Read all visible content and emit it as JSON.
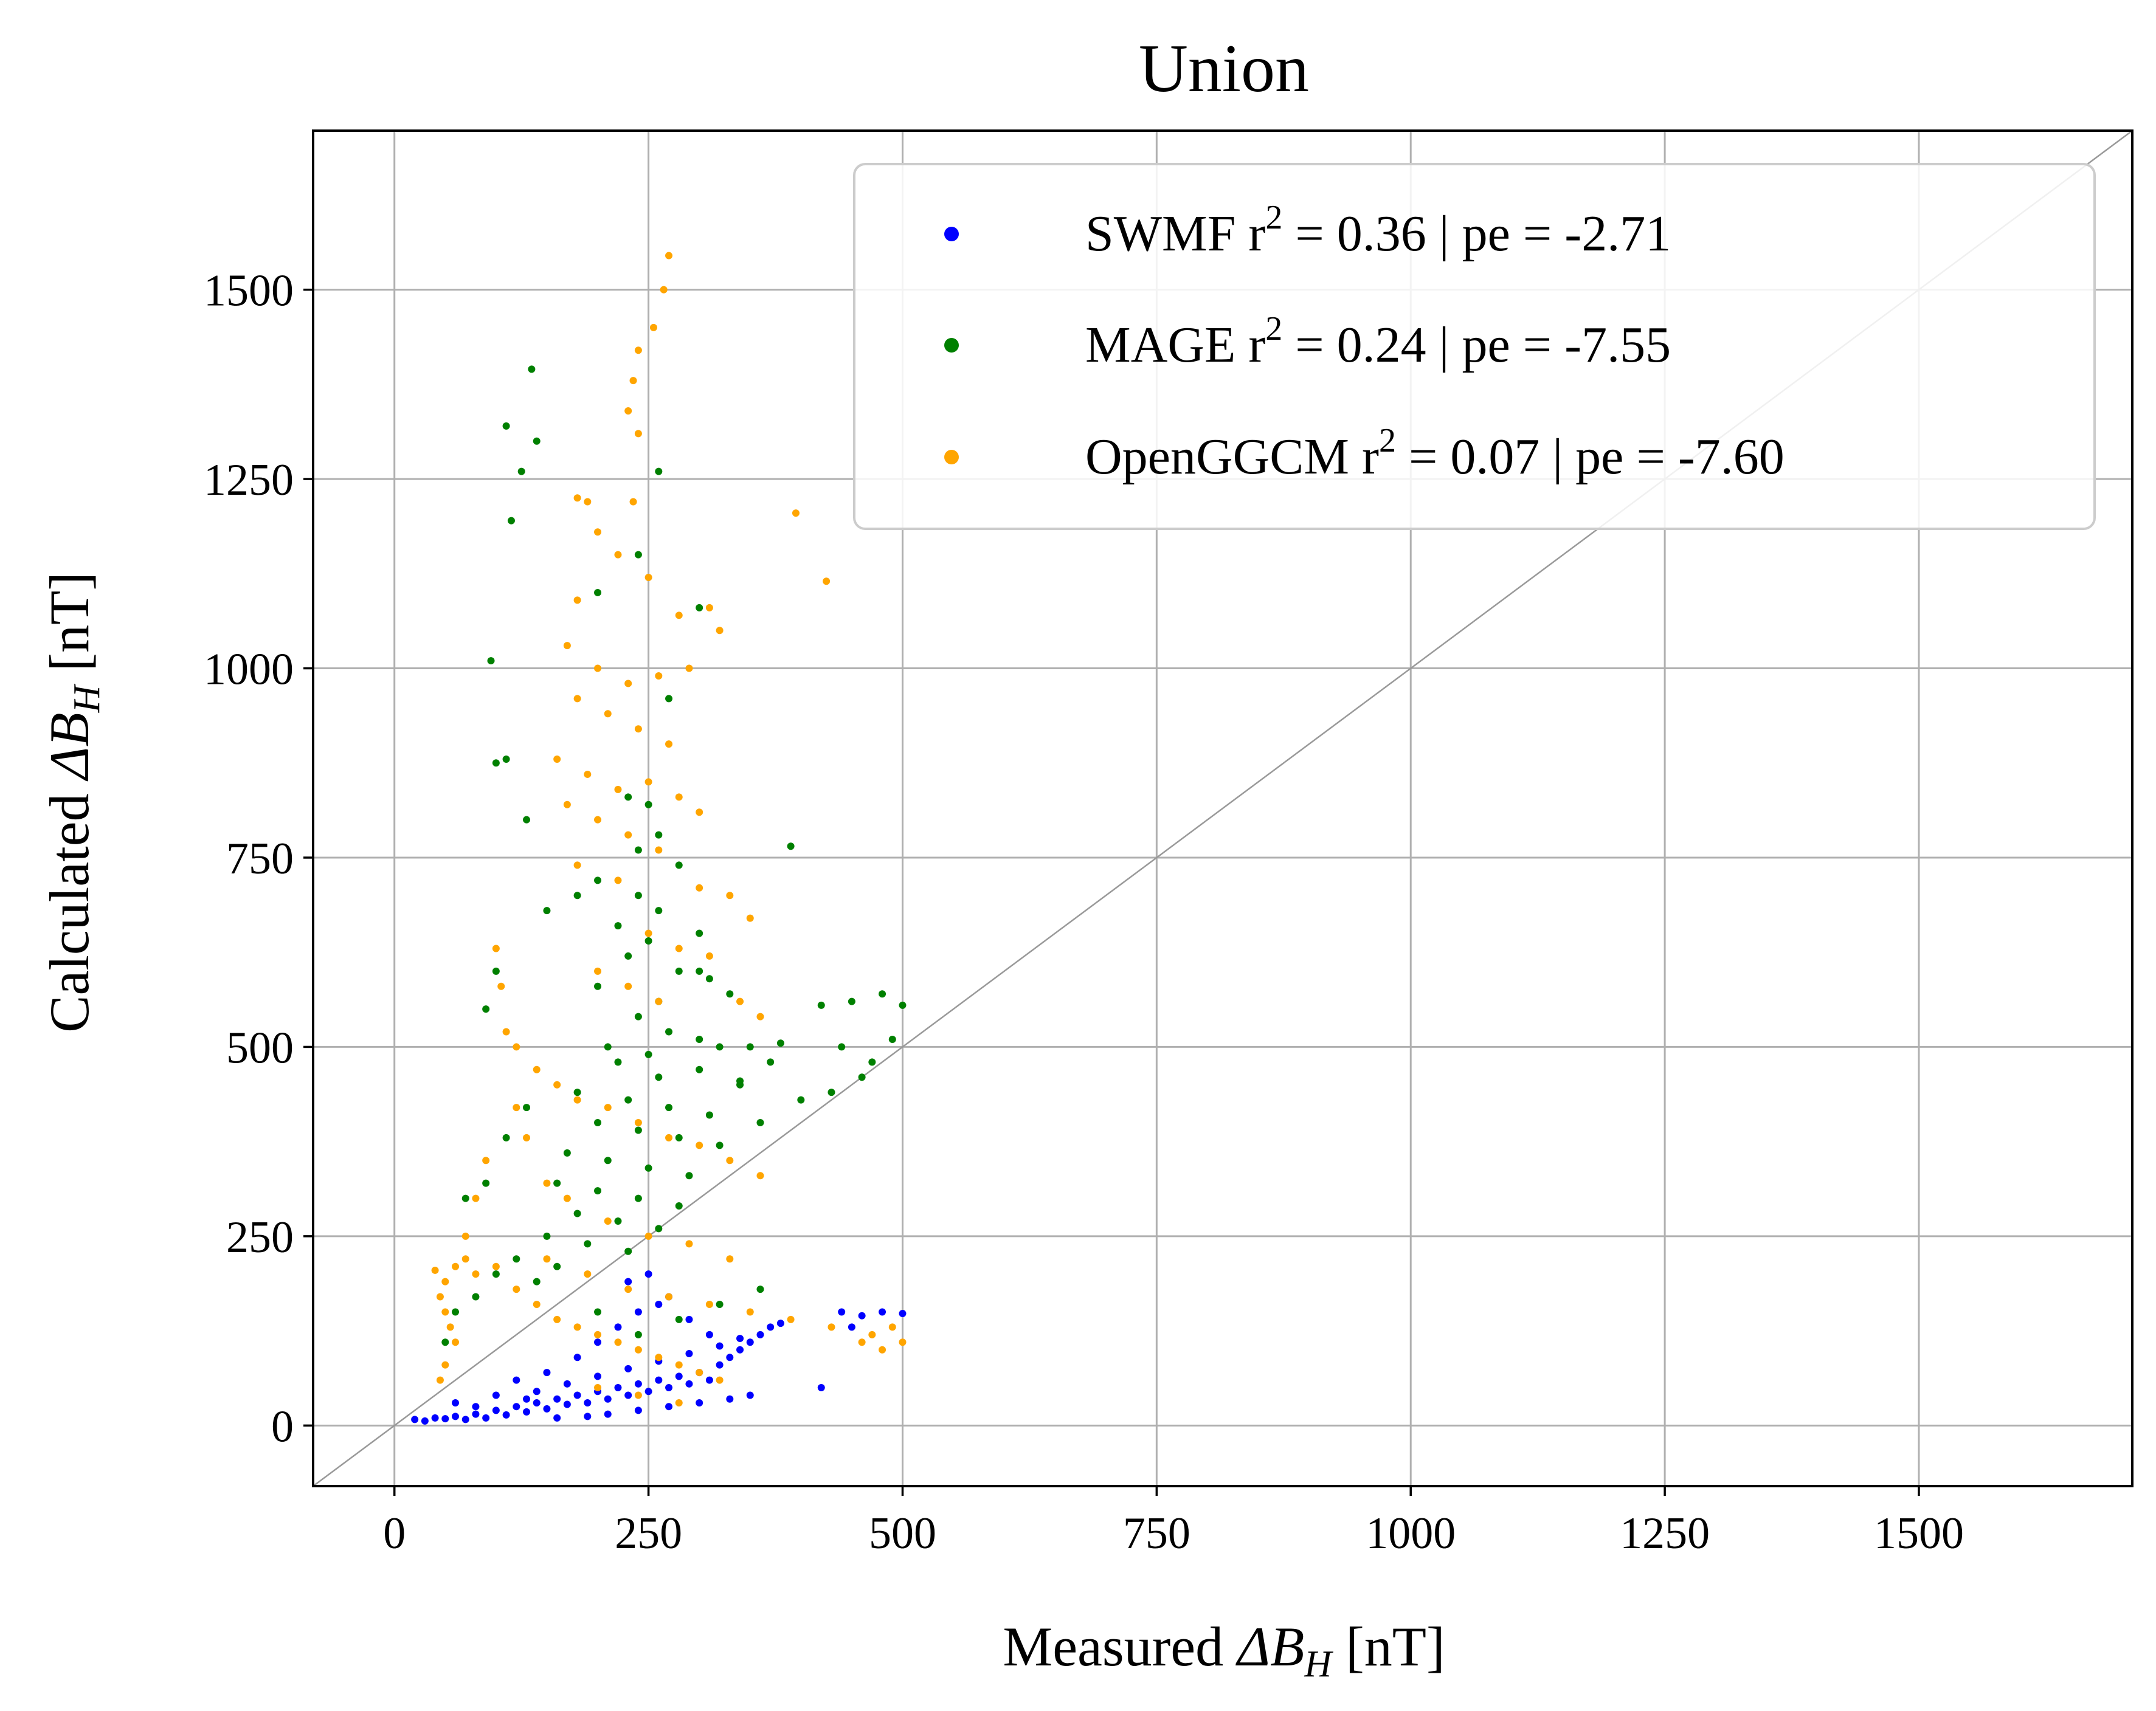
{
  "chart_data": {
    "type": "scatter",
    "title": "Union",
    "xlabel_prefix": "Measured ",
    "xlabel_symbol": "ΔB",
    "xlabel_sub": "H",
    "xlabel_suffix": " [nT]",
    "ylabel_prefix": "Calculated ",
    "ylabel_symbol": "ΔB",
    "ylabel_sub": "H",
    "ylabel_suffix": " [nT]",
    "xlim": [
      -80,
      1710
    ],
    "ylim": [
      -80,
      1710
    ],
    "xticks": [
      0,
      250,
      500,
      750,
      1000,
      1250,
      1500
    ],
    "yticks": [
      0,
      250,
      500,
      750,
      1000,
      1250,
      1500
    ],
    "grid": true,
    "reference_line": "y = x",
    "legend_position": "top-right",
    "series": [
      {
        "name": "SWMF",
        "legend_pre": "SWMF r",
        "legend_sup": "2",
        "legend_post": " = 0.36 | pe = -2.71",
        "color": "#0000ff",
        "points": [
          [
            20,
            8
          ],
          [
            30,
            6
          ],
          [
            40,
            10
          ],
          [
            50,
            9
          ],
          [
            60,
            12
          ],
          [
            70,
            8
          ],
          [
            80,
            15
          ],
          [
            90,
            10
          ],
          [
            100,
            20
          ],
          [
            110,
            14
          ],
          [
            120,
            25
          ],
          [
            130,
            18
          ],
          [
            140,
            30
          ],
          [
            150,
            22
          ],
          [
            160,
            35
          ],
          [
            170,
            28
          ],
          [
            180,
            40
          ],
          [
            190,
            30
          ],
          [
            200,
            45
          ],
          [
            210,
            35
          ],
          [
            220,
            50
          ],
          [
            230,
            40
          ],
          [
            240,
            55
          ],
          [
            250,
            45
          ],
          [
            260,
            60
          ],
          [
            270,
            50
          ],
          [
            280,
            65
          ],
          [
            290,
            55
          ],
          [
            300,
            70
          ],
          [
            310,
            60
          ],
          [
            320,
            80
          ],
          [
            330,
            90
          ],
          [
            340,
            100
          ],
          [
            350,
            110
          ],
          [
            360,
            120
          ],
          [
            370,
            130
          ],
          [
            380,
            135
          ],
          [
            120,
            60
          ],
          [
            150,
            70
          ],
          [
            180,
            90
          ],
          [
            200,
            110
          ],
          [
            220,
            130
          ],
          [
            240,
            150
          ],
          [
            260,
            160
          ],
          [
            230,
            190
          ],
          [
            250,
            200
          ],
          [
            270,
            170
          ],
          [
            290,
            140
          ],
          [
            310,
            120
          ],
          [
            160,
            10
          ],
          [
            190,
            12
          ],
          [
            210,
            15
          ],
          [
            240,
            20
          ],
          [
            270,
            25
          ],
          [
            300,
            30
          ],
          [
            330,
            35
          ],
          [
            350,
            40
          ],
          [
            140,
            45
          ],
          [
            170,
            55
          ],
          [
            200,
            65
          ],
          [
            230,
            75
          ],
          [
            260,
            85
          ],
          [
            290,
            95
          ],
          [
            320,
            105
          ],
          [
            340,
            115
          ],
          [
            420,
            50
          ],
          [
            440,
            150
          ],
          [
            460,
            145
          ],
          [
            480,
            150
          ],
          [
            500,
            148
          ],
          [
            450,
            130
          ],
          [
            100,
            40
          ],
          [
            130,
            35
          ],
          [
            60,
            30
          ],
          [
            80,
            25
          ]
        ]
      },
      {
        "name": "MAGE",
        "legend_pre": "MAGE r",
        "legend_sup": "2",
        "legend_post": " = 0.24 | pe = -7.55",
        "color": "#008000",
        "points": [
          [
            135,
            1395
          ],
          [
            110,
            1320
          ],
          [
            140,
            1300
          ],
          [
            125,
            1260
          ],
          [
            260,
            1260
          ],
          [
            115,
            1195
          ],
          [
            240,
            1150
          ],
          [
            200,
            1100
          ],
          [
            300,
            1080
          ],
          [
            95,
            1010
          ],
          [
            270,
            960
          ],
          [
            100,
            875
          ],
          [
            110,
            880
          ],
          [
            230,
            830
          ],
          [
            250,
            820
          ],
          [
            260,
            780
          ],
          [
            130,
            800
          ],
          [
            240,
            760
          ],
          [
            390,
            765
          ],
          [
            280,
            740
          ],
          [
            200,
            720
          ],
          [
            240,
            700
          ],
          [
            260,
            680
          ],
          [
            220,
            660
          ],
          [
            300,
            650
          ],
          [
            250,
            640
          ],
          [
            230,
            620
          ],
          [
            280,
            600
          ],
          [
            310,
            590
          ],
          [
            200,
            580
          ],
          [
            260,
            560
          ],
          [
            330,
            570
          ],
          [
            420,
            555
          ],
          [
            450,
            560
          ],
          [
            480,
            570
          ],
          [
            500,
            555
          ],
          [
            240,
            540
          ],
          [
            270,
            520
          ],
          [
            300,
            510
          ],
          [
            210,
            500
          ],
          [
            250,
            490
          ],
          [
            350,
            500
          ],
          [
            380,
            505
          ],
          [
            220,
            480
          ],
          [
            260,
            460
          ],
          [
            300,
            470
          ],
          [
            340,
            455
          ],
          [
            180,
            440
          ],
          [
            230,
            430
          ],
          [
            270,
            420
          ],
          [
            310,
            410
          ],
          [
            200,
            400
          ],
          [
            240,
            390
          ],
          [
            280,
            380
          ],
          [
            320,
            370
          ],
          [
            170,
            360
          ],
          [
            210,
            350
          ],
          [
            250,
            340
          ],
          [
            290,
            330
          ],
          [
            160,
            320
          ],
          [
            200,
            310
          ],
          [
            240,
            300
          ],
          [
            280,
            290
          ],
          [
            180,
            280
          ],
          [
            220,
            270
          ],
          [
            260,
            260
          ],
          [
            150,
            250
          ],
          [
            190,
            240
          ],
          [
            230,
            230
          ],
          [
            120,
            220
          ],
          [
            160,
            210
          ],
          [
            100,
            200
          ],
          [
            140,
            190
          ],
          [
            80,
            170
          ],
          [
            60,
            150
          ],
          [
            50,
            110
          ],
          [
            70,
            300
          ],
          [
            90,
            320
          ],
          [
            110,
            380
          ],
          [
            130,
            420
          ],
          [
            100,
            600
          ],
          [
            90,
            550
          ],
          [
            150,
            680
          ],
          [
            180,
            700
          ],
          [
            300,
            600
          ],
          [
            320,
            500
          ],
          [
            340,
            450
          ],
          [
            360,
            400
          ],
          [
            370,
            480
          ],
          [
            400,
            430
          ],
          [
            430,
            440
          ],
          [
            460,
            460
          ],
          [
            440,
            500
          ],
          [
            490,
            510
          ],
          [
            470,
            480
          ],
          [
            200,
            150
          ],
          [
            240,
            120
          ],
          [
            280,
            140
          ],
          [
            320,
            160
          ],
          [
            360,
            180
          ]
        ]
      },
      {
        "name": "OpenGGCM",
        "legend_pre": "OpenGGCM r",
        "legend_sup": "2",
        "legend_post": " = 0.07 | pe = -7.60",
        "color": "#ffa500",
        "points": [
          [
            270,
            1545
          ],
          [
            265,
            1500
          ],
          [
            255,
            1450
          ],
          [
            240,
            1420
          ],
          [
            235,
            1380
          ],
          [
            230,
            1340
          ],
          [
            240,
            1310
          ],
          [
            180,
            1225
          ],
          [
            190,
            1220
          ],
          [
            235,
            1220
          ],
          [
            395,
            1205
          ],
          [
            425,
            1115
          ],
          [
            200,
            1180
          ],
          [
            220,
            1150
          ],
          [
            250,
            1120
          ],
          [
            180,
            1090
          ],
          [
            280,
            1070
          ],
          [
            310,
            1080
          ],
          [
            320,
            1050
          ],
          [
            170,
            1030
          ],
          [
            200,
            1000
          ],
          [
            230,
            980
          ],
          [
            260,
            990
          ],
          [
            290,
            1000
          ],
          [
            180,
            960
          ],
          [
            210,
            940
          ],
          [
            240,
            920
          ],
          [
            270,
            900
          ],
          [
            160,
            880
          ],
          [
            190,
            860
          ],
          [
            220,
            840
          ],
          [
            250,
            850
          ],
          [
            280,
            830
          ],
          [
            300,
            810
          ],
          [
            170,
            820
          ],
          [
            200,
            800
          ],
          [
            230,
            780
          ],
          [
            260,
            760
          ],
          [
            180,
            740
          ],
          [
            220,
            720
          ],
          [
            300,
            710
          ],
          [
            330,
            700
          ],
          [
            350,
            670
          ],
          [
            250,
            650
          ],
          [
            280,
            630
          ],
          [
            310,
            620
          ],
          [
            200,
            600
          ],
          [
            230,
            580
          ],
          [
            260,
            560
          ],
          [
            340,
            560
          ],
          [
            360,
            540
          ],
          [
            100,
            630
          ],
          [
            105,
            580
          ],
          [
            110,
            520
          ],
          [
            120,
            500
          ],
          [
            140,
            470
          ],
          [
            160,
            450
          ],
          [
            180,
            430
          ],
          [
            210,
            420
          ],
          [
            240,
            400
          ],
          [
            270,
            380
          ],
          [
            300,
            370
          ],
          [
            330,
            350
          ],
          [
            360,
            330
          ],
          [
            90,
            350
          ],
          [
            80,
            300
          ],
          [
            70,
            250
          ],
          [
            60,
            210
          ],
          [
            40,
            205
          ],
          [
            50,
            190
          ],
          [
            45,
            170
          ],
          [
            50,
            150
          ],
          [
            55,
            130
          ],
          [
            60,
            110
          ],
          [
            50,
            80
          ],
          [
            45,
            60
          ],
          [
            70,
            220
          ],
          [
            80,
            200
          ],
          [
            100,
            210
          ],
          [
            120,
            180
          ],
          [
            140,
            160
          ],
          [
            160,
            140
          ],
          [
            180,
            130
          ],
          [
            200,
            120
          ],
          [
            220,
            110
          ],
          [
            240,
            100
          ],
          [
            260,
            90
          ],
          [
            280,
            80
          ],
          [
            300,
            70
          ],
          [
            320,
            60
          ],
          [
            150,
            220
          ],
          [
            190,
            200
          ],
          [
            230,
            180
          ],
          [
            270,
            170
          ],
          [
            310,
            160
          ],
          [
            350,
            150
          ],
          [
            390,
            140
          ],
          [
            430,
            130
          ],
          [
            460,
            110
          ],
          [
            480,
            100
          ],
          [
            500,
            110
          ],
          [
            490,
            130
          ],
          [
            470,
            120
          ],
          [
            200,
            50
          ],
          [
            240,
            40
          ],
          [
            280,
            30
          ],
          [
            210,
            270
          ],
          [
            250,
            250
          ],
          [
            290,
            240
          ],
          [
            330,
            220
          ],
          [
            170,
            300
          ],
          [
            150,
            320
          ],
          [
            130,
            380
          ],
          [
            120,
            420
          ]
        ]
      }
    ]
  }
}
